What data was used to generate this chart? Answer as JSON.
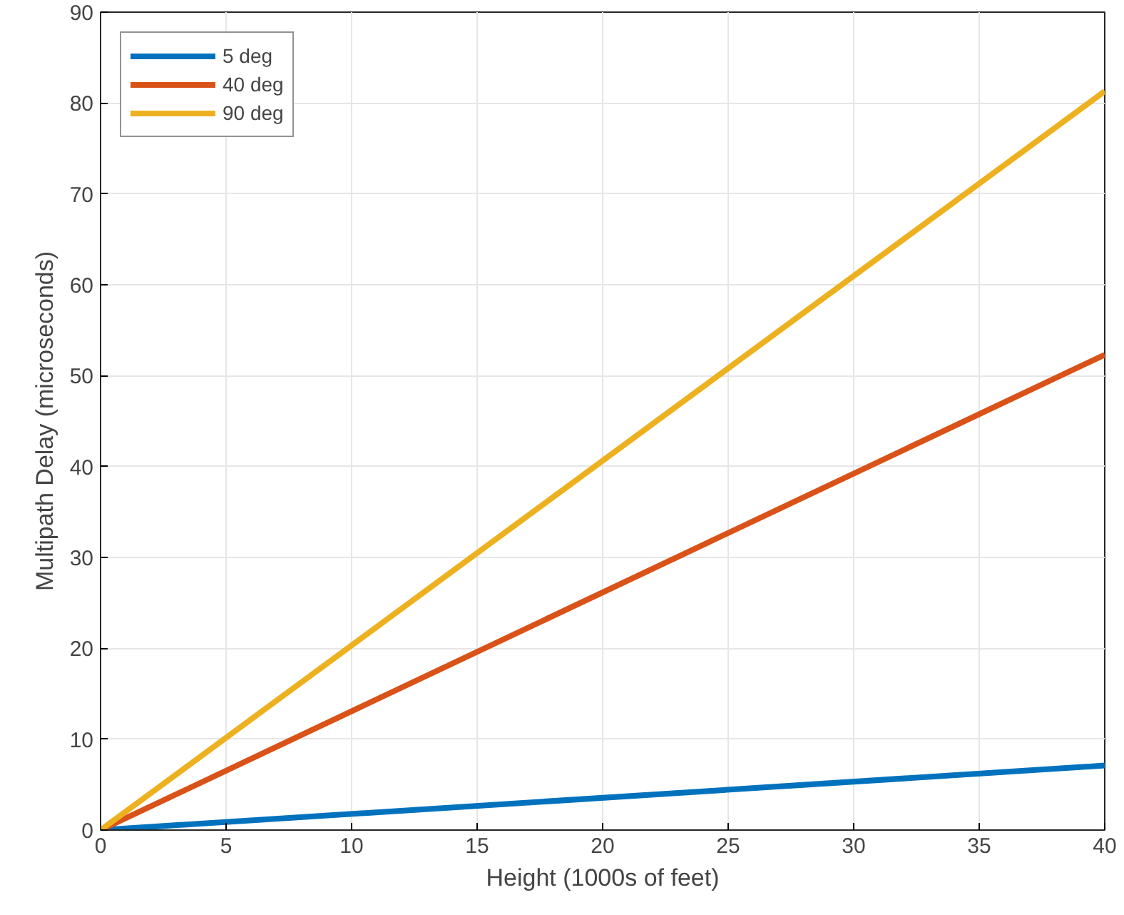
{
  "chart_data": {
    "type": "line",
    "xlabel": "Height (1000s of feet)",
    "ylabel": "Multipath Delay (microseconds)",
    "x": [
      0,
      40
    ],
    "series": [
      {
        "name": "5 deg",
        "color": "#0072bd",
        "values": [
          0,
          7.1
        ]
      },
      {
        "name": "40 deg",
        "color": "#d95319",
        "values": [
          0,
          52.3
        ]
      },
      {
        "name": "90 deg",
        "color": "#edb120",
        "values": [
          0,
          81.3
        ]
      }
    ],
    "xlim": [
      0,
      40
    ],
    "ylim": [
      0,
      90
    ],
    "xticks": [
      0,
      5,
      10,
      15,
      20,
      25,
      30,
      35,
      40
    ],
    "yticks": [
      0,
      10,
      20,
      30,
      40,
      50,
      60,
      70,
      80,
      90
    ],
    "grid": true,
    "legend": "top left",
    "line_style": "solid",
    "marker": "none"
  }
}
